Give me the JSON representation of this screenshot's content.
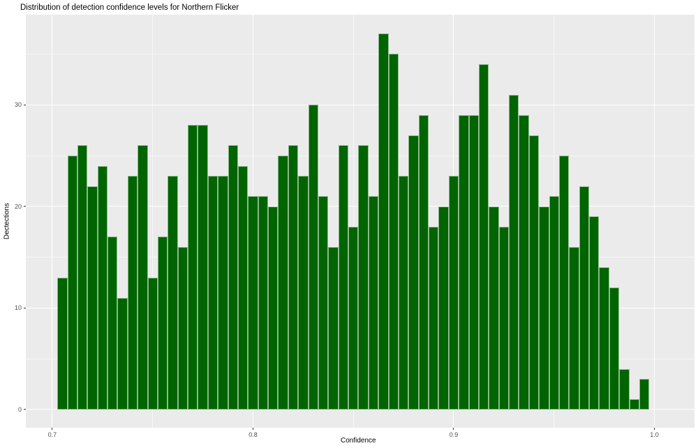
{
  "title": "Distribution of detection confidence levels for Northern Flicker",
  "chart_data": {
    "type": "bar",
    "subtype": "histogram",
    "title": "Distribution of detection confidence levels for Northern Flicker",
    "xlabel": "Confidence",
    "ylabel": "Dectections",
    "legend": false,
    "grid": true,
    "xlim": [
      0.6868,
      1.02
    ],
    "ylim": [
      -1.79,
      38.88
    ],
    "x_tick_values": [
      0.7,
      0.8,
      0.9,
      1.0
    ],
    "x_tick_labels": [
      "0.7",
      "0.8",
      "0.9",
      "1.0"
    ],
    "y_tick_values": [
      0,
      10,
      20,
      30
    ],
    "y_tick_labels": [
      "0",
      "10",
      "20",
      "30"
    ],
    "x_minor_gridlines": [
      0.75,
      0.85,
      0.95
    ],
    "y_minor_gridlines": [
      5,
      15,
      25,
      35
    ],
    "bin_start": 0.7025,
    "bin_width": 0.005,
    "values": [
      13,
      25,
      26,
      22,
      24,
      17,
      11,
      23,
      26,
      13,
      17,
      23,
      16,
      28,
      28,
      23,
      23,
      26,
      24,
      21,
      21,
      20,
      25,
      26,
      23,
      30,
      21,
      16,
      26,
      18,
      26,
      21,
      37,
      35,
      23,
      27,
      29,
      18,
      20,
      23,
      29,
      29,
      34,
      20,
      18,
      31,
      29,
      27,
      20,
      21,
      25,
      16,
      22,
      19,
      14,
      12,
      4,
      1,
      3
    ],
    "colors": {
      "bar_fill": "#006400",
      "bar_border": "rgba(255,255,255,0.55)",
      "panel_bg": "#EBEBEB",
      "gridline": "#FFFFFF",
      "tick_label": "#4D4D4D",
      "tick_mark": "#333333",
      "text": "#000000"
    }
  }
}
